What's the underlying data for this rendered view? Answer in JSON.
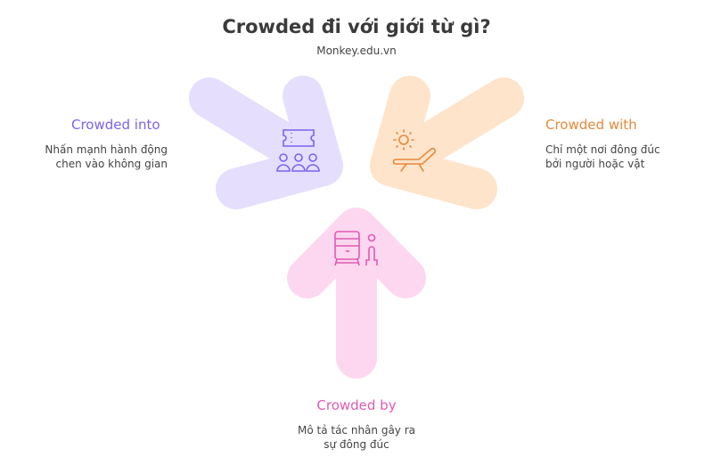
{
  "title": "Crowded đi với giới từ gì?",
  "subtitle": "Monkey.edu.vn",
  "colors": {
    "into": {
      "fill": "#e5defd",
      "accent": "#7b63ee"
    },
    "with": {
      "fill": "#fde4ca",
      "accent": "#e8883a"
    },
    "by": {
      "fill": "#fdd7ef",
      "accent": "#e05ab4"
    }
  },
  "items": [
    {
      "label": "Crowded into",
      "description_line1": "Nhấn mạnh hành động",
      "description_line2": "chen vào không gian",
      "icon": "ticket-audience-icon"
    },
    {
      "label": "Crowded with",
      "description_line1": "Chỉ một nơi đông đúc",
      "description_line2": "bởi người hoặc vật",
      "icon": "sun-lounger-icon"
    },
    {
      "label": "Crowded by",
      "description_line1": "Mô tả tác nhân gây ra",
      "description_line2": "sự đông đúc",
      "icon": "train-person-icon"
    }
  ]
}
